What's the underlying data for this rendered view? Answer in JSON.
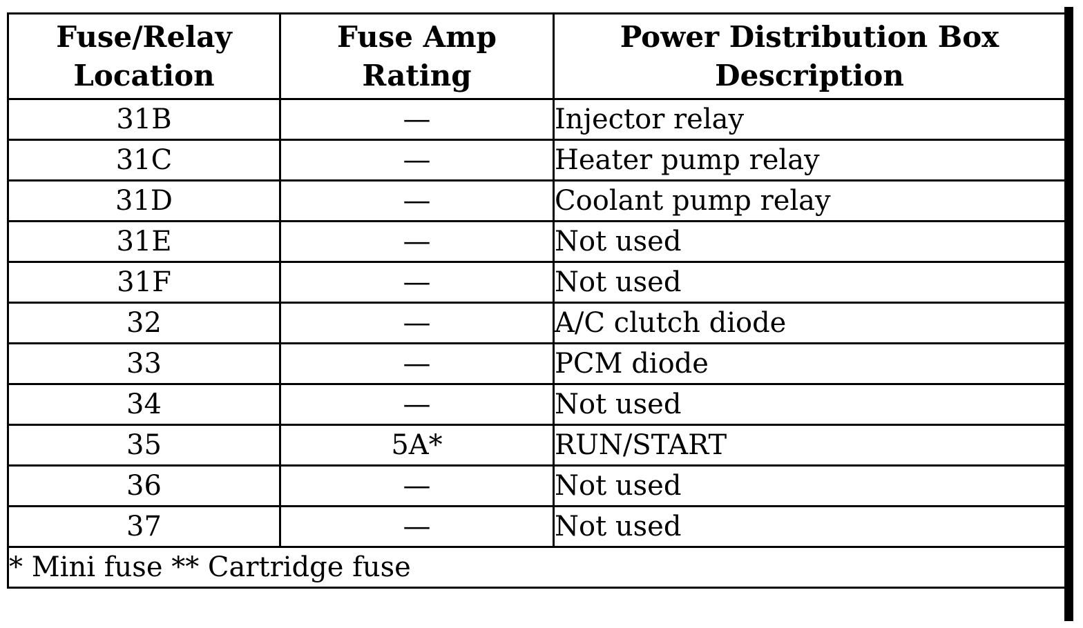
{
  "table": {
    "headers": [
      {
        "line1": "Fuse/Relay",
        "line2": "Location"
      },
      {
        "line1": "Fuse Amp",
        "line2": "Rating"
      },
      {
        "line1": "Power Distribution Box",
        "line2": "Description"
      }
    ],
    "rows": [
      {
        "location": "31B",
        "amp": "—",
        "description": "Injector relay"
      },
      {
        "location": "31C",
        "amp": "—",
        "description": "Heater pump relay"
      },
      {
        "location": "31D",
        "amp": "—",
        "description": "Coolant pump relay"
      },
      {
        "location": "31E",
        "amp": "—",
        "description": "Not used"
      },
      {
        "location": "31F",
        "amp": "—",
        "description": "Not used"
      },
      {
        "location": "32",
        "amp": "—",
        "description": "A/C clutch diode"
      },
      {
        "location": "33",
        "amp": "—",
        "description": "PCM diode"
      },
      {
        "location": "34",
        "amp": "—",
        "description": "Not used"
      },
      {
        "location": "35",
        "amp": "5A*",
        "description": "RUN/START"
      },
      {
        "location": "36",
        "amp": "—",
        "description": "Not used"
      },
      {
        "location": "37",
        "amp": "—",
        "description": "Not used"
      }
    ],
    "footnote": "* Mini fuse ** Cartridge fuse"
  }
}
